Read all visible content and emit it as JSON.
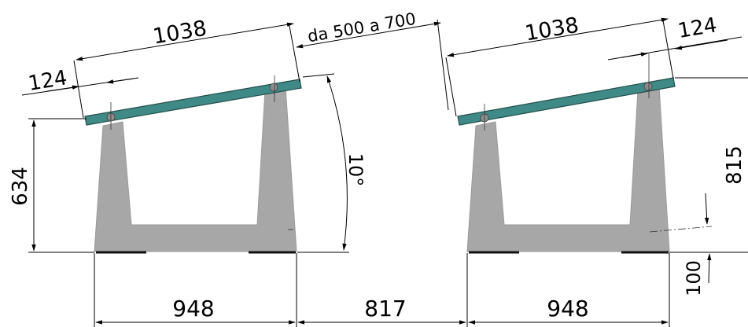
{
  "dimensions": {
    "left_panel_length": "1038",
    "left_overhang": "124",
    "left_height": "634",
    "tilt_angle": "10°",
    "gap_range": "da 500 a 700",
    "right_panel_length": "1038",
    "right_overhang": "124",
    "right_height": "815",
    "right_base_offset": "100",
    "left_base_width": "948",
    "gap_between_bases": "817",
    "right_base_width": "948"
  }
}
